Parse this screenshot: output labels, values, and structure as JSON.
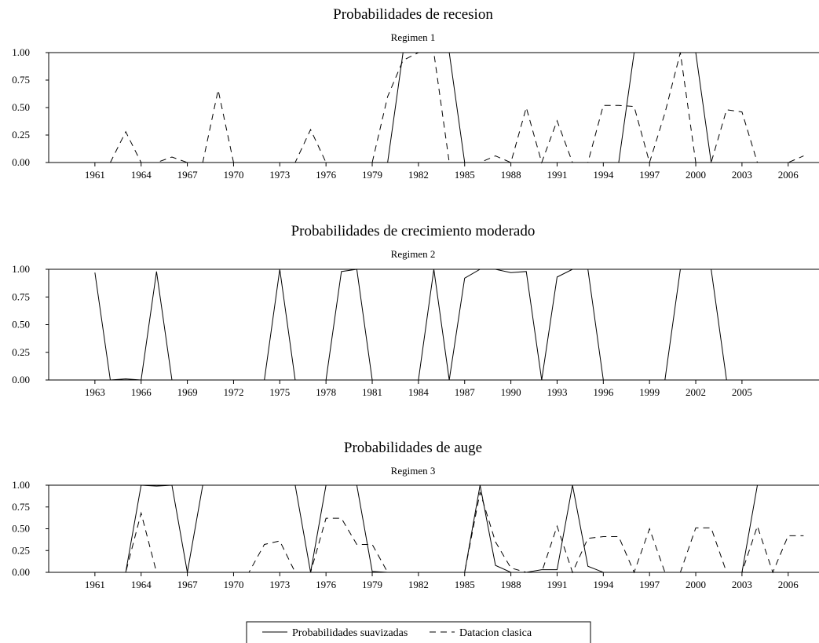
{
  "chart_data": [
    {
      "type": "line",
      "title": "Probabilidades de recesion",
      "subtitle": "Regimen 1",
      "x_start": 1958,
      "x_end": 2008,
      "x_tick_labels": [
        "1961",
        "1964",
        "1967",
        "1970",
        "1973",
        "1976",
        "1979",
        "1982",
        "1985",
        "1988",
        "1991",
        "1994",
        "1997",
        "2000",
        "2003",
        "2006"
      ],
      "y_tick_labels": [
        "0.00",
        "0.25",
        "0.50",
        "0.75",
        "1.00"
      ],
      "ylim": [
        0,
        1
      ],
      "x": [
        1962,
        1963,
        1964,
        1965,
        1966,
        1967,
        1968,
        1969,
        1970,
        1971,
        1972,
        1973,
        1974,
        1975,
        1976,
        1977,
        1978,
        1979,
        1980,
        1981,
        1982,
        1983,
        1984,
        1985,
        1986,
        1987,
        1988,
        1989,
        1990,
        1991,
        1992,
        1993,
        1994,
        1995,
        1996,
        1997,
        1998,
        1999,
        2000,
        2001,
        2002,
        2003,
        2004,
        2005,
        2006,
        2007
      ],
      "series": [
        {
          "name": "Probabilidades suavizadas",
          "style": "solid",
          "values": [
            0,
            0,
            0,
            0,
            0,
            0,
            0,
            0,
            0,
            0,
            0,
            0,
            0,
            0,
            0,
            0,
            0,
            0,
            0,
            1,
            1,
            1,
            1,
            0,
            0,
            0,
            0,
            0,
            0,
            0,
            0,
            0,
            0,
            0,
            1,
            1,
            1,
            1,
            1,
            0,
            0,
            0,
            0,
            0,
            0,
            0
          ]
        },
        {
          "name": "Datacion clasica",
          "style": "dashed",
          "values": [
            0,
            0.28,
            0,
            0,
            0.05,
            0,
            0,
            0.66,
            0,
            0,
            0,
            0,
            0,
            0.3,
            0,
            0,
            0,
            0,
            0.6,
            0.93,
            1,
            1,
            0,
            0,
            0,
            0.06,
            0,
            0.5,
            0,
            0.38,
            0,
            0,
            0.52,
            0.52,
            0.51,
            0,
            0.45,
            1,
            0,
            0,
            0.48,
            0.46,
            0,
            0,
            0,
            0.06
          ]
        }
      ]
    },
    {
      "type": "line",
      "title": "Probabilidades de crecimiento moderado",
      "subtitle": "Regimen 2",
      "x_start": 1960,
      "x_end": 2010,
      "x_tick_labels": [
        "1963",
        "1966",
        "1969",
        "1972",
        "1975",
        "1978",
        "1981",
        "1984",
        "1987",
        "1990",
        "1993",
        "1996",
        "1999",
        "2002",
        "2005"
      ],
      "y_tick_labels": [
        "0.00",
        "0.25",
        "0.50",
        "0.75",
        "1.00"
      ],
      "ylim": [
        0,
        1
      ],
      "x": [
        1963,
        1964,
        1965,
        1966,
        1967,
        1968,
        1969,
        1970,
        1971,
        1972,
        1973,
        1974,
        1975,
        1976,
        1977,
        1978,
        1979,
        1980,
        1981,
        1982,
        1983,
        1984,
        1985,
        1986,
        1987,
        1988,
        1989,
        1990,
        1991,
        1992,
        1993,
        1994,
        1995,
        1996,
        1997,
        1998,
        1999,
        2000,
        2001,
        2002,
        2003,
        2004,
        2005,
        2006,
        2007
      ],
      "series": [
        {
          "name": "Probabilidades suavizadas",
          "style": "solid",
          "values": [
            0.97,
            0,
            0.01,
            0,
            0.98,
            0,
            0,
            0,
            0,
            0,
            0,
            0,
            1,
            0,
            0,
            0,
            0.98,
            1,
            0,
            0,
            0,
            0,
            1,
            0,
            0.92,
            1,
            1,
            0.97,
            0.98,
            0,
            0.93,
            1,
            1,
            0,
            0,
            0,
            0,
            0,
            1,
            1,
            1,
            0,
            0,
            0,
            0
          ]
        }
      ]
    },
    {
      "type": "line",
      "title": "Probabilidades de auge",
      "subtitle": "Regimen 3",
      "x_start": 1958,
      "x_end": 2008,
      "x_tick_labels": [
        "1961",
        "1964",
        "1967",
        "1970",
        "1973",
        "1976",
        "1979",
        "1982",
        "1985",
        "1988",
        "1991",
        "1994",
        "1997",
        "2000",
        "2003",
        "2006"
      ],
      "y_tick_labels": [
        "0.00",
        "0.25",
        "0.50",
        "0.75",
        "1.00"
      ],
      "ylim": [
        0,
        1
      ],
      "x": [
        1961,
        1962,
        1963,
        1964,
        1965,
        1966,
        1967,
        1968,
        1969,
        1970,
        1971,
        1972,
        1973,
        1974,
        1975,
        1976,
        1977,
        1978,
        1979,
        1980,
        1981,
        1982,
        1983,
        1984,
        1985,
        1986,
        1987,
        1988,
        1989,
        1990,
        1991,
        1992,
        1993,
        1994,
        1995,
        1996,
        1997,
        1998,
        1999,
        2000,
        2001,
        2002,
        2003,
        2004,
        2005,
        2006,
        2007
      ],
      "series": [
        {
          "name": "Probabilidades suavizadas",
          "style": "solid",
          "values": [
            0,
            0,
            0,
            1,
            0.99,
            1,
            0,
            1,
            1,
            1,
            1,
            1,
            1,
            1,
            0,
            1,
            1,
            1,
            0.01,
            0,
            0,
            0,
            0,
            0,
            0,
            1,
            0.08,
            0,
            0,
            0.03,
            0.03,
            1,
            0.07,
            0,
            0,
            0,
            0,
            0,
            0,
            0,
            0,
            0,
            0,
            1,
            1,
            1,
            1
          ]
        },
        {
          "name": "Datacion clasica",
          "style": "dashed",
          "values": [
            0,
            0,
            0,
            0.68,
            0,
            0,
            0,
            0,
            0,
            0,
            0,
            0.32,
            0.36,
            0,
            0,
            0.62,
            0.62,
            0.32,
            0.32,
            0,
            0,
            0,
            0,
            0,
            0,
            0.92,
            0.35,
            0.05,
            0,
            0,
            0.53,
            0,
            0.39,
            0.41,
            0.41,
            0,
            0.5,
            0,
            0,
            0.51,
            0.51,
            0,
            0,
            0.53,
            0,
            0.42,
            0.42
          ]
        }
      ]
    }
  ],
  "legend": {
    "items": [
      {
        "label": "Probabilidades suavizadas",
        "style": "solid"
      },
      {
        "label": "Datacion clasica",
        "style": "dashed"
      }
    ]
  }
}
